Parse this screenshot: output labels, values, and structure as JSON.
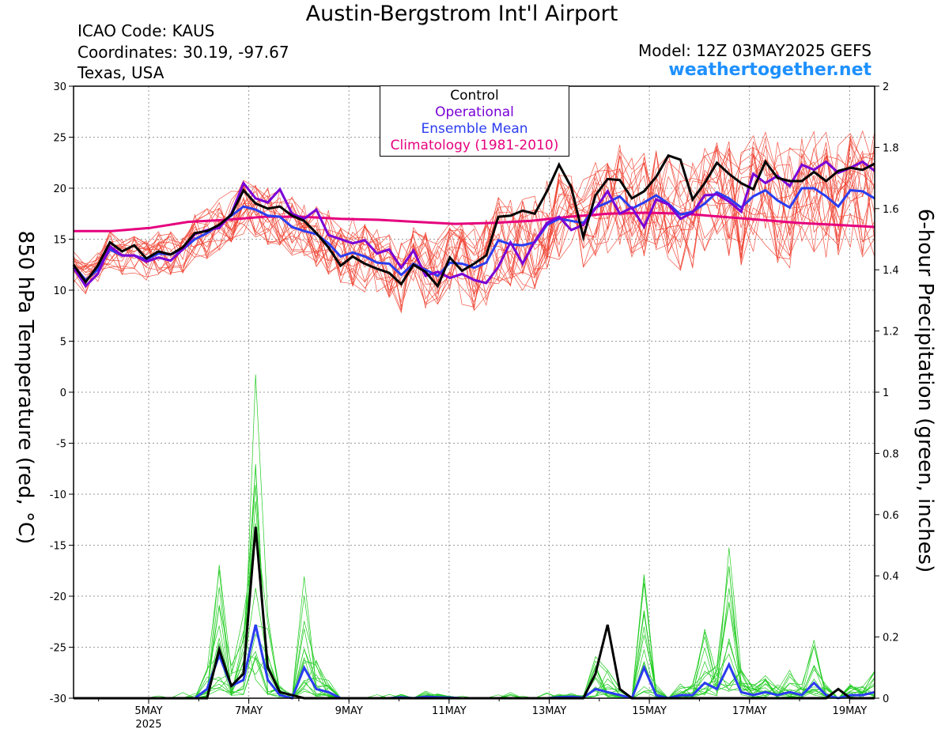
{
  "header": {
    "title": "Austin-Bergstrom Int'l Airport",
    "icao": "ICAO Code: KAUS",
    "coords": "Coordinates: 30.19, -97.67",
    "region": "Texas, USA",
    "model": "Model: 12Z 03MAY2025 GEFS",
    "site": "weathertogether.net"
  },
  "legend": {
    "control": "Control",
    "operational": "Operational",
    "mean": "Ensemble Mean",
    "climatology": "Climatology (1981-2010)"
  },
  "colors": {
    "control": "#000000",
    "operational": "#7a00d6",
    "mean": "#2b3cf0",
    "climatology": "#e5007e",
    "members_temp": "#f04030",
    "members_precip": "#22cc22",
    "site": "#1e90ff"
  },
  "chart_data": {
    "type": "line",
    "title": "Austin-Bergstrom Int'l Airport",
    "ylabel": "850 hPa Temperature (red, °C)",
    "ylabel_right": "6-hour Precipitation (green, inches)",
    "ylim": [
      -30,
      30
    ],
    "ylim_right": [
      0,
      2
    ],
    "y_ticks": [
      30,
      25,
      20,
      15,
      10,
      5,
      0,
      -5,
      -10,
      -15,
      -20,
      -25,
      -30
    ],
    "y_ticks_right": [
      "2",
      "1.8",
      "1.6",
      "1.4",
      "1.2",
      "1",
      "0.8",
      "0.6",
      "0.4",
      "0.2",
      "0"
    ],
    "x_ticks": [
      {
        "day": 5,
        "label": "5MAY",
        "sub": "2025"
      },
      {
        "day": 7,
        "label": "7MAY",
        "sub": ""
      },
      {
        "day": 9,
        "label": "9MAY",
        "sub": ""
      },
      {
        "day": 11,
        "label": "11MAY",
        "sub": ""
      },
      {
        "day": 13,
        "label": "13MAY",
        "sub": ""
      },
      {
        "day": 15,
        "label": "15MAY",
        "sub": ""
      },
      {
        "day": 17,
        "label": "17MAY",
        "sub": ""
      },
      {
        "day": 19,
        "label": "19MAY",
        "sub": ""
      }
    ],
    "x_range_days": [
      3.5,
      19.5
    ],
    "grid": true,
    "series": [
      {
        "name": "Control",
        "axis": "temp",
        "values": [
          12.5,
          10.8,
          12.4,
          14.7,
          13.8,
          14.4,
          13.1,
          13.8,
          13.5,
          14.2,
          15.6,
          15.8,
          16.4,
          17.4,
          19.8,
          18.5,
          18.0,
          18.2,
          17.3,
          16.8,
          15.6,
          14.2,
          12.4,
          13.3,
          12.6,
          12.1,
          11.7,
          10.6,
          12.5,
          11.8,
          10.4,
          13.2,
          11.9,
          12.6,
          13.4,
          17.2,
          17.3,
          17.8,
          17.5,
          19.7,
          22.3,
          20.1,
          15.2,
          19.3,
          20.9,
          20.8,
          19.0,
          19.7,
          21.1,
          23.2,
          22.8,
          18.9,
          20.5,
          22.5,
          21.4,
          20.5,
          19.9,
          22.6,
          21.0,
          20.7,
          20.7,
          21.6,
          20.7,
          21.7,
          22.0,
          21.8,
          22.4
        ]
      },
      {
        "name": "Operational",
        "axis": "temp",
        "values": [
          12.2,
          10.4,
          11.6,
          14.3,
          13.4,
          13.4,
          12.8,
          13.2,
          12.9,
          14.0,
          15.5,
          15.9,
          16.1,
          17.5,
          20.5,
          19.0,
          18.6,
          19.9,
          17.5,
          17.0,
          17.9,
          15.4,
          15.0,
          14.6,
          14.9,
          13.6,
          14.0,
          12.2,
          13.9,
          11.4,
          11.8,
          11.2,
          11.6,
          11.0,
          10.7,
          12.3,
          14.7,
          12.6,
          14.8,
          16.6,
          17.2,
          15.9,
          16.4,
          18.0,
          19.7,
          17.5,
          18.1,
          16.2,
          18.9,
          18.4,
          17.0,
          17.6,
          19.3,
          19.4,
          18.7,
          17.7,
          21.4,
          20.5,
          21.2,
          20.2,
          22.3,
          21.8,
          22.6,
          21.5,
          22.0,
          22.6,
          21.7
        ]
      },
      {
        "name": "Ensemble Mean",
        "axis": "temp",
        "values": [
          12.4,
          11.0,
          12.0,
          14.0,
          13.4,
          13.4,
          13.0,
          13.6,
          13.5,
          14.0,
          15.0,
          15.6,
          16.4,
          17.3,
          18.2,
          17.9,
          17.3,
          17.2,
          16.2,
          15.8,
          15.5,
          14.6,
          13.3,
          13.7,
          13.3,
          12.7,
          12.6,
          11.5,
          12.6,
          12.0,
          11.4,
          12.7,
          12.6,
          12.2,
          12.7,
          14.9,
          14.5,
          14.4,
          14.7,
          16.4,
          17.0,
          16.8,
          16.6,
          18.1,
          18.6,
          19.2,
          18.0,
          18.6,
          19.3,
          18.5,
          17.4,
          17.7,
          18.5,
          19.6,
          19.0,
          18.1,
          19.2,
          19.8,
          18.8,
          18.1,
          20.0,
          20.0,
          19.2,
          18.2,
          19.8,
          19.7,
          19.0
        ]
      },
      {
        "name": "Climatology (1981-2010)",
        "axis": "temp",
        "values": [
          15.8,
          15.8,
          16.1,
          16.7,
          16.9,
          17.2,
          17.2,
          17.0,
          16.9,
          16.7,
          16.5,
          16.6,
          16.8,
          17.2,
          17.5,
          17.6,
          17.5,
          17.2,
          16.9,
          16.6,
          16.4,
          16.2
        ]
      },
      {
        "name": "Control precipitation",
        "axis": "precip",
        "values": [
          0,
          0,
          0,
          0,
          0,
          0,
          0,
          0,
          0,
          0,
          0,
          0,
          0.16,
          0.04,
          0.08,
          0.56,
          0.1,
          0.02,
          0.01,
          0,
          0,
          0,
          0,
          0,
          0,
          0,
          0,
          0,
          0,
          0,
          0,
          0,
          0,
          0,
          0,
          0,
          0,
          0,
          0,
          0,
          0,
          0,
          0,
          0.08,
          0.24,
          0.03,
          0,
          0,
          0,
          0,
          0,
          0,
          0,
          0,
          0,
          0,
          0,
          0,
          0,
          0,
          0,
          0,
          0,
          0.03,
          0,
          0,
          0
        ]
      },
      {
        "name": "Operational precipitation",
        "axis": "precip",
        "values": [
          0,
          0,
          0,
          0,
          0,
          0,
          0,
          0,
          0,
          0,
          0,
          0,
          0.15,
          0.03,
          0.06,
          0.22,
          0.08,
          0.02,
          0,
          0,
          0,
          0,
          0,
          0,
          0,
          0,
          0,
          0,
          0,
          0,
          0,
          0,
          0,
          0,
          0,
          0,
          0,
          0,
          0,
          0,
          0,
          0,
          0,
          0.01,
          0.02,
          0.01,
          0,
          0,
          0,
          0,
          0,
          0,
          0,
          0,
          0,
          0,
          0,
          0,
          0,
          0,
          0,
          0,
          0,
          0.04,
          0,
          0,
          0
        ]
      },
      {
        "name": "Ensemble Mean precipitation",
        "axis": "precip",
        "values": [
          0,
          0,
          0,
          0,
          0,
          0,
          0,
          0,
          0,
          0,
          0,
          0.03,
          0.14,
          0.04,
          0.06,
          0.24,
          0.06,
          0.01,
          0,
          0.1,
          0.03,
          0.02,
          0,
          0,
          0,
          0,
          0,
          0.003,
          0,
          0.005,
          0.003,
          0.002,
          0,
          0,
          0,
          0,
          0,
          0,
          0,
          0,
          0.003,
          0.005,
          0.002,
          0.03,
          0.02,
          0.01,
          0,
          0.1,
          0.01,
          0,
          0.01,
          0.01,
          0.05,
          0.03,
          0.11,
          0.02,
          0.01,
          0.02,
          0.01,
          0.02,
          0.01,
          0.05,
          0.01,
          0,
          0.01,
          0.01,
          0.02
        ]
      }
    ]
  }
}
